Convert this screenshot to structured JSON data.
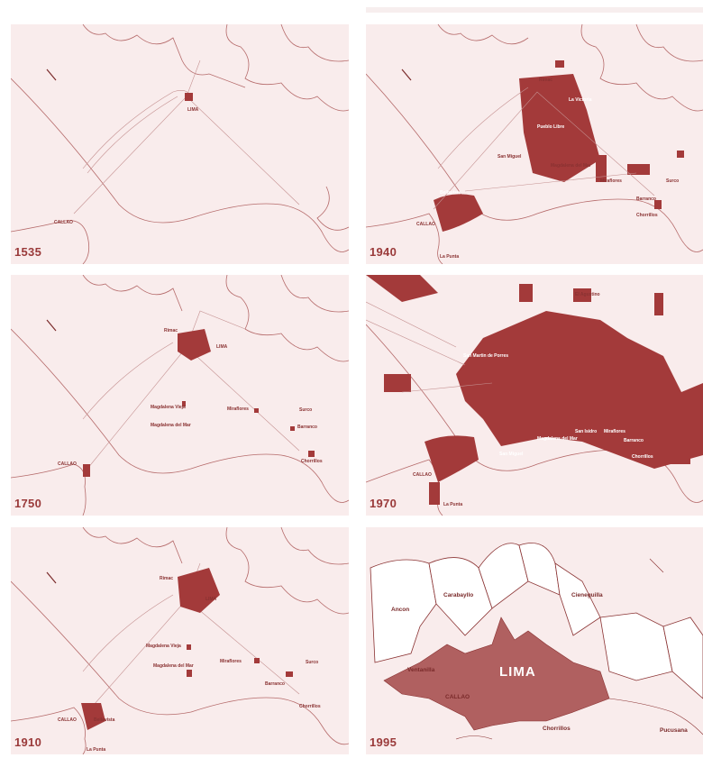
{
  "colors": {
    "panel_bg": "#f9ecec",
    "outline": "#b56a6a",
    "urban": "#a33a3a",
    "text": "#8a3232"
  },
  "panels": [
    {
      "year": "1535",
      "labels": [
        "LIMA",
        "CALLAO"
      ]
    },
    {
      "year": "1940",
      "labels": [
        "Rimac",
        "La Victoria",
        "Pueblo Libre",
        "San Miguel",
        "Bellavista",
        "Magdalena del Mar",
        "Miraflores",
        "Barranco",
        "Surco",
        "Chorrillos",
        "CALLAO",
        "La Punta"
      ]
    },
    {
      "year": "1750",
      "labels": [
        "Rimac",
        "LIMA",
        "Magdalena Vieja",
        "Magdalena del Mar",
        "Miraflores",
        "Surco",
        "Barranco",
        "Chorrillos",
        "CALLAO"
      ]
    },
    {
      "year": "1970",
      "labels": [
        "El Agustino",
        "San Martin de Porres",
        "San Miguel",
        "Magdalena del Mar",
        "San Isidro",
        "Miraflores",
        "Barranco",
        "Chorrillos",
        "CALLAO",
        "La Punta"
      ]
    },
    {
      "year": "1910",
      "labels": [
        "Rimac",
        "LIMA",
        "Magdalena Vieja",
        "Magdalena del Mar",
        "Miraflores",
        "Barranco",
        "Surco",
        "Chorrillos",
        "Bellavista",
        "CALLAO",
        "La Punta"
      ]
    },
    {
      "year": "1995",
      "labels": [
        "Ancon",
        "Carabayllo",
        "Cieneguilla",
        "Ventanilla",
        "LIMA",
        "CALLAO",
        "Chorrillos",
        "Pucusana"
      ]
    }
  ]
}
